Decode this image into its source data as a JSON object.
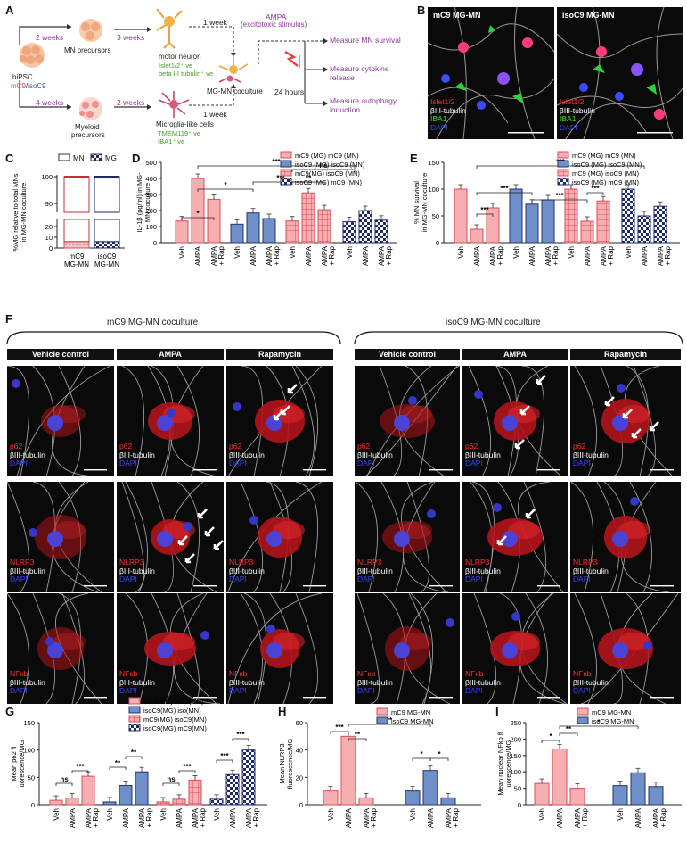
{
  "panels": {
    "A": "A",
    "B": "B",
    "C": "C",
    "D": "D",
    "E": "E",
    "F": "F",
    "G": "G",
    "H": "H",
    "I": "I"
  },
  "schematic": {
    "hipsc": "hiPSC",
    "mc9": "mC9",
    "slash": "/",
    "isoc9": "isoC9",
    "two_weeks_top": "2 weeks",
    "three_weeks": "3 weeks",
    "one_week_top": "1 week",
    "four_weeks": "4 weeks",
    "two_weeks_bot": "2 weeks",
    "one_week_bot": "1 week",
    "mn_precursors": "MN precursors",
    "motor_neuron": "motor neuron",
    "islet": "Islet1/2⁺ ve",
    "tubulin": "beta III tubulin⁺ ve",
    "myeloid": "Myeloid",
    "precursors": "precursors",
    "microglia": "Microglia-like cells",
    "tmem": "TMEM119⁺ ve",
    "iba": "IBA1⁺ ve",
    "ampa": "AMPA",
    "excito": "(excitotoxic stimulus)",
    "coculture": "MG-MN coculture",
    "hours": "24 hours",
    "out1": "Measure MN survival",
    "out2a": "Measure cytokine",
    "out2b": "release",
    "out3a": "Measure autophagy",
    "out3b": "induction"
  },
  "panelB": {
    "left_title": "mC9 MG-MN",
    "right_title": "isoC9 MG-MN",
    "l1": "Islet1/2",
    "l2": "βIII-tubulin",
    "l3": "IBA1",
    "l4": "DAPI"
  },
  "panelF": {
    "left_group": "mC9 MG-MN coculture",
    "right_group": "isoC9 MG-MN coculture",
    "cols": [
      "Vehicle control",
      "AMPA",
      "Rapamycin"
    ],
    "markers": [
      "p62",
      "NLRP3",
      "NFκb"
    ],
    "tub": "βIII-tubulin",
    "dapi": "DAPI"
  },
  "chart_data": [
    {
      "id": "C",
      "type": "bar",
      "ylabel": "%MG relative to total MNs in MG-MN coculture",
      "categories": [
        "mC9 MG-MN",
        "isoC9 MG-MN"
      ],
      "yticks_low": [
        "0",
        "10",
        "20"
      ],
      "yticks_high": [
        "90",
        "100"
      ],
      "series": [
        {
          "name": "MG",
          "values": [
            6,
            6
          ]
        },
        {
          "name": "MN",
          "values": [
            94,
            94
          ]
        }
      ],
      "legend": [
        "MN",
        "MG"
      ]
    },
    {
      "id": "D",
      "type": "bar",
      "ylabel": "IL-1β (pg/ml) in MG-MN coculture",
      "ylim": [
        0,
        500
      ],
      "yticks": [
        "0",
        "100",
        "200",
        "300",
        "400",
        "500"
      ],
      "groups": [
        "mC9 (MG) mC9 (MN)",
        "isoC9 (MG) isoC9 (MN)",
        "mC9(MG) isoC9 (MN)",
        "isoC9 (MG) mC9 (MN)"
      ],
      "categories": [
        "Veh",
        "AMPA",
        "AMPA + Rap"
      ],
      "values": [
        [
          135,
          400,
          270
        ],
        [
          115,
          185,
          150
        ],
        [
          135,
          310,
          205
        ],
        [
          130,
          200,
          140
        ]
      ],
      "sig": [
        "*",
        "*",
        "***",
        "***",
        "**",
        "ns"
      ]
    },
    {
      "id": "E",
      "type": "bar",
      "ylabel": "% MN survival in MG-MN coculture",
      "ylim": [
        0,
        150
      ],
      "yticks": [
        "0",
        "50",
        "100",
        "150"
      ],
      "groups": [
        "mC9 (MG) mC9 (MN)",
        "isoC9 (MG) isoC9 (MN)",
        "mC9 (MG) isoC9 (MN)",
        "isoC9 (MG) mC9 (MN)"
      ],
      "categories": [
        "Veh",
        "AMPA",
        "AMPA + Rap"
      ],
      "values": [
        [
          100,
          25,
          65
        ],
        [
          100,
          72,
          80
        ],
        [
          100,
          40,
          78
        ],
        [
          100,
          50,
          68
        ]
      ],
      "sig": [
        "***",
        "***",
        "***",
        "***",
        "***"
      ]
    },
    {
      "id": "G",
      "type": "bar",
      "ylabel": "Mean p62 fluorescence/MG",
      "ylim": [
        0,
        150
      ],
      "yticks": [
        "0",
        "50",
        "100",
        "150"
      ],
      "groups": [
        "mC9(MG) mC9(MN)",
        "isoC9(MG) iso(MN)",
        "mC9(MG) isoC9(MN)",
        "isoC9(MG) mC9(MN)"
      ],
      "categories": [
        "Veh",
        "AMPA",
        "AMPA + Rap"
      ],
      "values": [
        [
          8,
          12,
          52
        ],
        [
          5,
          35,
          60
        ],
        [
          5,
          10,
          45
        ],
        [
          10,
          55,
          100
        ]
      ],
      "sig": [
        "ns",
        "***",
        "**",
        "**",
        "ns",
        "***",
        "***",
        "***"
      ]
    },
    {
      "id": "H",
      "type": "bar",
      "ylabel": "Mean NLRP3 fluorescence/MG",
      "ylim": [
        0,
        60
      ],
      "yticks": [
        "0",
        "20",
        "40",
        "60"
      ],
      "groups": [
        "mC9 MG-MN",
        "isoC9 MG-MN"
      ],
      "categories": [
        "Veh",
        "AMPA",
        "AMPA + Rap"
      ],
      "values": [
        [
          10,
          50,
          5
        ],
        [
          10,
          25,
          5
        ]
      ],
      "sig": [
        "***",
        "**",
        "**",
        "*",
        "*"
      ]
    },
    {
      "id": "I",
      "type": "bar",
      "ylabel": "Mean nuclear NFkb fluorescence/MG",
      "ylim": [
        0,
        250
      ],
      "yticks": [
        "0",
        "50",
        "100",
        "150",
        "200",
        "250"
      ],
      "groups": [
        "mC9 MG-MN",
        "isoC9 MG-MN"
      ],
      "categories": [
        "Veh",
        "AMPA",
        "AMPA + Rap"
      ],
      "values": [
        [
          65,
          170,
          50
        ],
        [
          58,
          97,
          55
        ]
      ],
      "sig": [
        "*",
        "**",
        "*"
      ]
    }
  ],
  "colors": {
    "pink": "#f7aeb0",
    "pink_edge": "#d94d5a",
    "blue": "#6f8fc9",
    "blue_edge": "#22336e",
    "navy": "#1c2a66",
    "red_line": "#c0303c",
    "purple": "#8b3a96",
    "green": "#4a9a2a",
    "orange": "#e8a23a"
  }
}
